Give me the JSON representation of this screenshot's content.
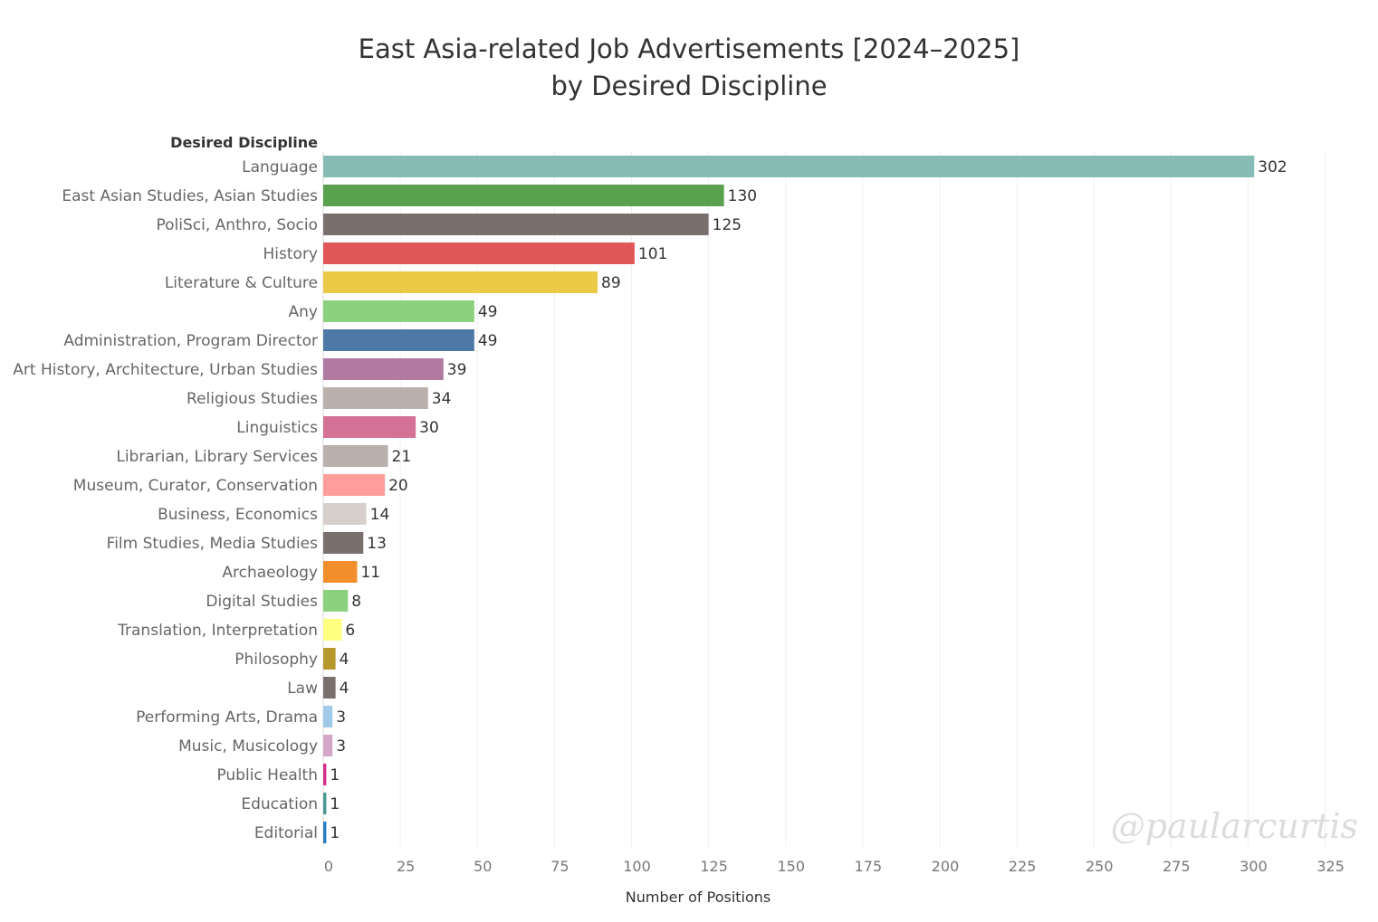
{
  "chart_data": {
    "type": "bar",
    "orientation": "horizontal",
    "title": [
      "East Asia-related Job Advertisements [2024–2025]",
      "by Desired Discipline"
    ],
    "dimension_label": "Desired Discipline",
    "xlabel": "Number of Positions",
    "xlim": [
      0,
      325
    ],
    "x_ticks": [
      0,
      25,
      50,
      75,
      100,
      125,
      150,
      175,
      200,
      225,
      250,
      275,
      300,
      325
    ],
    "grid": "vertical",
    "categories": [
      "Language",
      "East Asian Studies, Asian Studies",
      "PoliSci, Anthro, Socio",
      "History",
      "Literature & Culture",
      "Any",
      "Administration, Program Director",
      "Art History, Architecture, Urban Studies",
      "Religious Studies",
      "Linguistics",
      "Librarian, Library Services",
      "Museum, Curator, Conservation",
      "Business, Economics",
      "Film Studies, Media Studies",
      "Archaeology",
      "Digital Studies",
      "Translation, Interpretation",
      "Philosophy",
      "Law",
      "Performing Arts, Drama",
      "Music, Musicology",
      "Public Health",
      "Education",
      "Editorial"
    ],
    "values": [
      302,
      130,
      125,
      101,
      89,
      49,
      49,
      39,
      34,
      30,
      21,
      20,
      14,
      13,
      11,
      8,
      6,
      4,
      4,
      3,
      3,
      1,
      1,
      1
    ],
    "colors": [
      "#86bcb6",
      "#59a14f",
      "#79706e",
      "#e15759",
      "#edc948",
      "#8cd17d",
      "#4e79a7",
      "#b07aa1",
      "#bab0ac",
      "#d37295",
      "#bab0ac",
      "#ff9d9a",
      "#d7cfcc",
      "#79706e",
      "#f28e2b",
      "#8cd17d",
      "#ffff80",
      "#b6992d",
      "#79706e",
      "#a0cbe8",
      "#d4a6c8",
      "#d62c8a",
      "#499894",
      "#2a7fc1"
    ]
  },
  "watermark": "@paularcurtis"
}
